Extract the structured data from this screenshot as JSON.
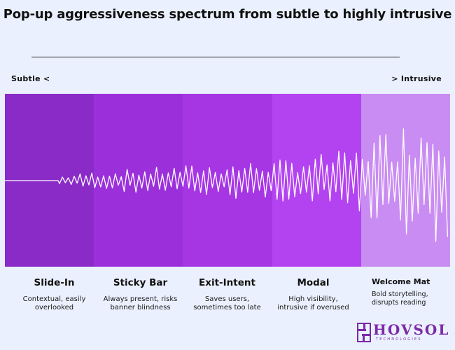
{
  "title": "Pop-up aggressiveness spectrum from subtle to highly intrusive",
  "scale": {
    "left_label": "Subtle <",
    "right_label": "> Intrusive"
  },
  "types": [
    {
      "name": "Slide-In",
      "description": "Contextual, easily\noverlooked",
      "color": "#8a2bc8"
    },
    {
      "name": "Sticky Bar",
      "description": "Always present, risks\nbanner blindness",
      "color": "#9b30db"
    },
    {
      "name": "Exit-Intent",
      "description": "Saves users,\nsometimes too late",
      "color": "#a635e4"
    },
    {
      "name": "Modal",
      "description": "High visibility,\nintrusive if overused",
      "color": "#b342f0"
    },
    {
      "name": "Welcome Mat",
      "description": "Bold storytelling,\ndisrupts reading",
      "color": "#c98cf2"
    }
  ],
  "logo": {
    "name": "HOVSOL",
    "tagline": "TECHNOLOGIES",
    "color": "#7b2aa8"
  }
}
